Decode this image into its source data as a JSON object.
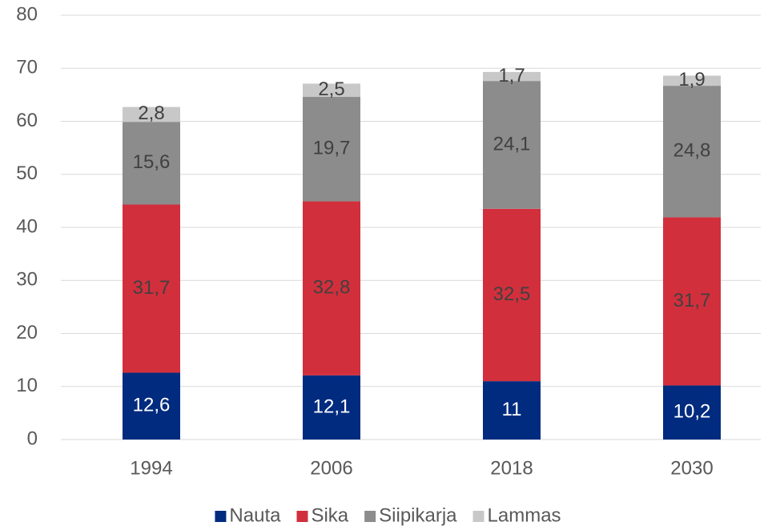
{
  "chart_data": {
    "type": "stacked_bar",
    "categories": [
      "1994",
      "2006",
      "2018",
      "2030"
    ],
    "series": [
      {
        "name": "Nauta",
        "color": "#002b7f",
        "values": [
          12.6,
          12.1,
          11,
          10.2
        ],
        "value_labels": [
          "12,6",
          "12,1",
          "11",
          "10,2"
        ]
      },
      {
        "name": "Sika",
        "color": "#d22f3c",
        "values": [
          31.7,
          32.8,
          32.5,
          31.7
        ],
        "value_labels": [
          "31,7",
          "32,8",
          "32,5",
          "31,7"
        ]
      },
      {
        "name": "Siipikarja",
        "color": "#8c8c8c",
        "values": [
          15.6,
          19.7,
          24.1,
          24.8
        ],
        "value_labels": [
          "15,6",
          "19,7",
          "24,1",
          "24,8"
        ]
      },
      {
        "name": "Lammas",
        "color": "#c8c8c8",
        "values": [
          2.8,
          2.5,
          1.7,
          1.9
        ],
        "value_labels": [
          "2,8",
          "2,5",
          "1,7",
          "1,9"
        ]
      }
    ],
    "ylim": [
      0,
      80
    ],
    "yticks": [
      0,
      10,
      20,
      30,
      40,
      50,
      60,
      70,
      80
    ],
    "grid": true,
    "legend": "bottom"
  }
}
